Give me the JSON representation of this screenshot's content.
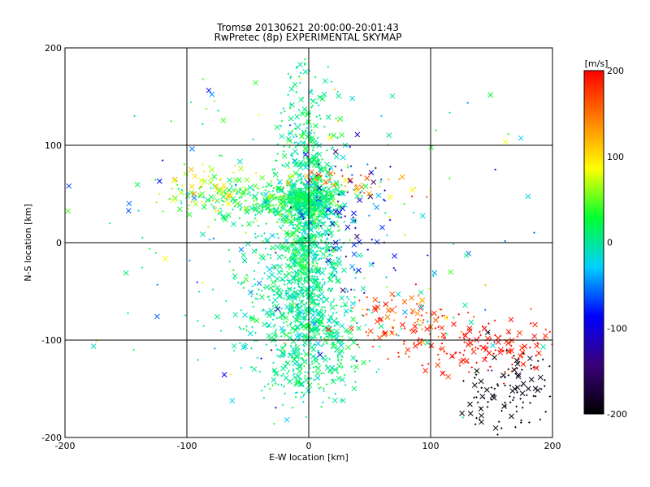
{
  "chart_data": {
    "type": "scatter",
    "title": "Tromsø 20130621 20:00:00-20:01:43",
    "subtitle": "RwPretec (8p) EXPERIMENTAL SKYMAP",
    "xlabel": "E-W location [km]",
    "ylabel": "N-S location [km]",
    "xlim": [
      -200,
      200
    ],
    "ylim": [
      -200,
      200
    ],
    "xticks": [
      "-200",
      "-100",
      "0",
      "100",
      "200"
    ],
    "yticks": [
      "-200",
      "-100",
      "0",
      "100",
      "200"
    ],
    "grid": true,
    "colorbar": {
      "label": "[m/s]",
      "range": [
        -200,
        200
      ],
      "ticks": [
        "-200",
        "-100",
        "0",
        "100",
        "200"
      ],
      "colors": [
        "#000000",
        "#3a007a",
        "#0000ff",
        "#00d0ff",
        "#00ff30",
        "#ffff00",
        "#ff8000",
        "#ff0000"
      ]
    },
    "markers": [
      "x (large)",
      "+ (small)"
    ],
    "clusters": [
      {
        "x": 0,
        "y": 20,
        "sx": 12,
        "sy": 70,
        "n": 900,
        "v": 5,
        "dv": 18
      },
      {
        "x": -10,
        "y": -55,
        "sx": 25,
        "sy": 45,
        "n": 450,
        "v": 0,
        "dv": 15
      },
      {
        "x": -30,
        "y": 45,
        "sx": 35,
        "sy": 12,
        "n": 300,
        "v": 25,
        "dv": 25
      },
      {
        "x": 0,
        "y": 40,
        "sx": 10,
        "sy": 8,
        "n": 250,
        "v": 10,
        "dv": 12
      },
      {
        "x": 5,
        "y": -110,
        "sx": 22,
        "sy": 28,
        "n": 200,
        "v": 10,
        "dv": 15
      },
      {
        "x": -80,
        "y": 55,
        "sx": 20,
        "sy": 15,
        "n": 70,
        "v": 80,
        "dv": 30
      },
      {
        "x": 30,
        "y": 30,
        "sx": 20,
        "sy": 35,
        "n": 70,
        "v": -90,
        "dv": 40
      },
      {
        "x": 30,
        "y": 62,
        "sx": 25,
        "sy": 8,
        "n": 50,
        "v": 120,
        "dv": 40
      },
      {
        "x": 140,
        "y": -105,
        "sx": 35,
        "sy": 14,
        "n": 160,
        "v": 190,
        "dv": 12
      },
      {
        "x": 80,
        "y": -75,
        "sx": 25,
        "sy": 15,
        "n": 90,
        "v": 170,
        "dv": 25
      },
      {
        "x": 165,
        "y": -150,
        "sx": 20,
        "sy": 20,
        "n": 110,
        "v": -195,
        "dv": 8
      },
      {
        "x": 0,
        "y": 0,
        "sx": 100,
        "sy": 100,
        "n": 250,
        "v": 0,
        "dv": 60
      }
    ]
  }
}
